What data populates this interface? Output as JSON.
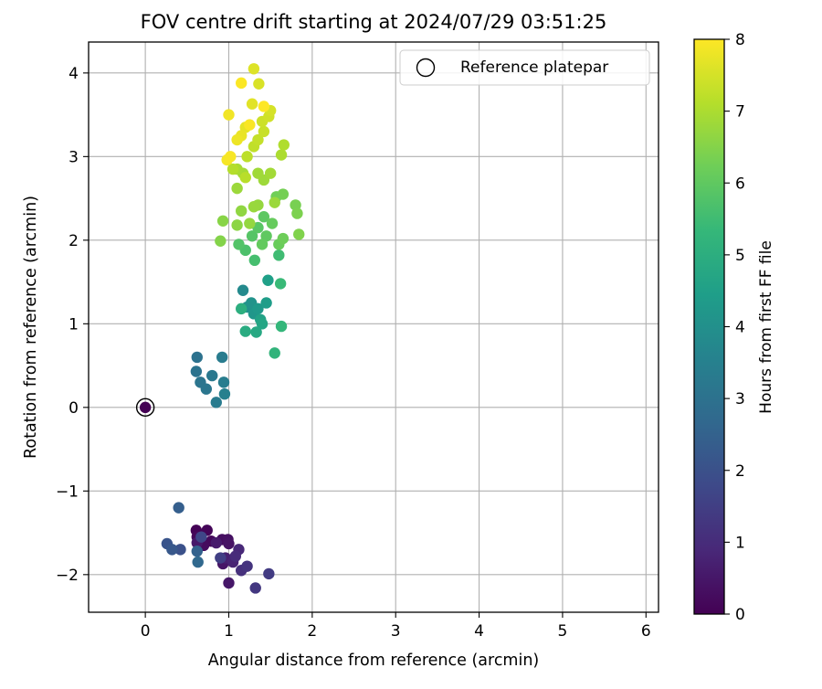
{
  "chart_data": {
    "type": "scatter",
    "title": "FOV centre drift starting at 2024/07/29 03:51:25",
    "xlabel": "Angular distance from reference (arcmin)",
    "ylabel": "Rotation from reference (arcmin)",
    "xlim": [
      -0.68,
      6.15
    ],
    "ylim": [
      -2.45,
      4.37
    ],
    "xticks": [
      0,
      1,
      2,
      3,
      4,
      5,
      6
    ],
    "yticks": [
      -2,
      -1,
      0,
      1,
      2,
      3,
      4
    ],
    "xtick_labels": [
      "0",
      "1",
      "2",
      "3",
      "4",
      "5",
      "6"
    ],
    "ytick_labels": [
      "−2",
      "−1",
      "0",
      "1",
      "2",
      "3",
      "4"
    ],
    "grid": true,
    "legend": {
      "placement": "top-right",
      "entries": [
        {
          "label": "Reference platepar",
          "marker": "open-circle"
        }
      ]
    },
    "reference_point": {
      "x": 0,
      "y": 0,
      "c": 0
    },
    "colorbar": {
      "label": "Hours from first FF file",
      "range": [
        0,
        8
      ],
      "ticks": [
        0,
        1,
        2,
        3,
        4,
        5,
        6,
        7,
        8
      ],
      "tick_labels": [
        "0",
        "1",
        "2",
        "3",
        "4",
        "5",
        "6",
        "7",
        "8"
      ],
      "colormap": "viridis",
      "stops": [
        "#440154",
        "#482878",
        "#3e4989",
        "#31688e",
        "#26828e",
        "#1f9e89",
        "#35b779",
        "#6ece58",
        "#b5de2b",
        "#fde725"
      ]
    },
    "points": [
      {
        "x": 0.61,
        "y": -1.47,
        "c": 0.05
      },
      {
        "x": 0.74,
        "y": -1.47,
        "c": 0.1
      },
      {
        "x": 0.62,
        "y": -1.55,
        "c": 0.15
      },
      {
        "x": 0.79,
        "y": -1.6,
        "c": 0.2
      },
      {
        "x": 0.7,
        "y": -1.65,
        "c": 0.25
      },
      {
        "x": 0.92,
        "y": -1.58,
        "c": 0.3
      },
      {
        "x": 0.99,
        "y": -1.58,
        "c": 0.35
      },
      {
        "x": 1.0,
        "y": -1.63,
        "c": 0.4
      },
      {
        "x": 0.93,
        "y": -1.87,
        "c": 0.45
      },
      {
        "x": 1.0,
        "y": -2.1,
        "c": 0.5
      },
      {
        "x": 0.62,
        "y": -1.62,
        "c": 0.55
      },
      {
        "x": 0.85,
        "y": -1.62,
        "c": 0.6
      },
      {
        "x": 0.96,
        "y": -1.8,
        "c": 0.7
      },
      {
        "x": 1.05,
        "y": -1.85,
        "c": 0.8
      },
      {
        "x": 1.12,
        "y": -1.7,
        "c": 0.9
      },
      {
        "x": 1.08,
        "y": -1.78,
        "c": 1.0
      },
      {
        "x": 1.15,
        "y": -1.95,
        "c": 1.1
      },
      {
        "x": 1.22,
        "y": -1.9,
        "c": 1.2
      },
      {
        "x": 1.32,
        "y": -2.16,
        "c": 1.3
      },
      {
        "x": 1.48,
        "y": -1.99,
        "c": 1.4
      },
      {
        "x": 0.9,
        "y": -1.8,
        "c": 1.5
      },
      {
        "x": 0.67,
        "y": -1.55,
        "c": 1.7
      },
      {
        "x": 0.42,
        "y": -1.7,
        "c": 2.0
      },
      {
        "x": 0.26,
        "y": -1.63,
        "c": 2.1
      },
      {
        "x": 0.32,
        "y": -1.7,
        "c": 2.2
      },
      {
        "x": 0.4,
        "y": -1.2,
        "c": 2.4
      },
      {
        "x": 0.62,
        "y": -1.72,
        "c": 2.5
      },
      {
        "x": 0.63,
        "y": -1.85,
        "c": 2.7
      },
      {
        "x": 0.62,
        "y": 0.6,
        "c": 3.0
      },
      {
        "x": 0.61,
        "y": 0.43,
        "c": 3.05
      },
      {
        "x": 0.66,
        "y": 0.3,
        "c": 3.1
      },
      {
        "x": 0.73,
        "y": 0.22,
        "c": 3.15
      },
      {
        "x": 0.8,
        "y": 0.38,
        "c": 3.2
      },
      {
        "x": 0.85,
        "y": 0.06,
        "c": 3.3
      },
      {
        "x": 0.92,
        "y": 0.6,
        "c": 3.35
      },
      {
        "x": 0.94,
        "y": 0.3,
        "c": 3.4
      },
      {
        "x": 0.95,
        "y": 0.16,
        "c": 3.5
      },
      {
        "x": 1.17,
        "y": 1.4,
        "c": 3.8
      },
      {
        "x": 1.22,
        "y": 1.2,
        "c": 4.0
      },
      {
        "x": 1.27,
        "y": 1.25,
        "c": 4.1
      },
      {
        "x": 1.3,
        "y": 1.12,
        "c": 4.2
      },
      {
        "x": 1.35,
        "y": 1.18,
        "c": 4.3
      },
      {
        "x": 1.45,
        "y": 1.25,
        "c": 4.4
      },
      {
        "x": 1.47,
        "y": 1.52,
        "c": 4.5
      },
      {
        "x": 1.38,
        "y": 1.05,
        "c": 4.6
      },
      {
        "x": 1.4,
        "y": 1.0,
        "c": 4.7
      },
      {
        "x": 1.33,
        "y": 0.9,
        "c": 4.8
      },
      {
        "x": 1.2,
        "y": 0.91,
        "c": 4.9
      },
      {
        "x": 1.15,
        "y": 1.18,
        "c": 5.0
      },
      {
        "x": 1.55,
        "y": 0.65,
        "c": 5.2
      },
      {
        "x": 1.63,
        "y": 0.97,
        "c": 5.3
      },
      {
        "x": 1.62,
        "y": 1.48,
        "c": 5.4
      },
      {
        "x": 1.6,
        "y": 1.82,
        "c": 5.5
      },
      {
        "x": 1.31,
        "y": 1.76,
        "c": 5.6
      },
      {
        "x": 1.2,
        "y": 1.88,
        "c": 5.7
      },
      {
        "x": 1.12,
        "y": 1.95,
        "c": 5.8
      },
      {
        "x": 1.28,
        "y": 2.05,
        "c": 5.85
      },
      {
        "x": 1.35,
        "y": 2.15,
        "c": 5.9
      },
      {
        "x": 1.42,
        "y": 2.28,
        "c": 5.95
      },
      {
        "x": 1.45,
        "y": 2.05,
        "c": 6.0
      },
      {
        "x": 1.4,
        "y": 1.95,
        "c": 6.05
      },
      {
        "x": 1.52,
        "y": 2.2,
        "c": 6.1
      },
      {
        "x": 1.6,
        "y": 1.95,
        "c": 6.15
      },
      {
        "x": 1.65,
        "y": 2.02,
        "c": 6.2
      },
      {
        "x": 1.57,
        "y": 2.52,
        "c": 6.25
      },
      {
        "x": 1.65,
        "y": 2.55,
        "c": 6.3
      },
      {
        "x": 1.8,
        "y": 2.42,
        "c": 6.35
      },
      {
        "x": 1.82,
        "y": 2.32,
        "c": 6.4
      },
      {
        "x": 1.84,
        "y": 2.07,
        "c": 6.45
      },
      {
        "x": 0.9,
        "y": 1.99,
        "c": 6.5
      },
      {
        "x": 0.93,
        "y": 2.23,
        "c": 6.55
      },
      {
        "x": 1.1,
        "y": 2.18,
        "c": 6.6
      },
      {
        "x": 1.15,
        "y": 2.35,
        "c": 6.65
      },
      {
        "x": 1.25,
        "y": 2.2,
        "c": 6.7
      },
      {
        "x": 1.35,
        "y": 2.42,
        "c": 6.72
      },
      {
        "x": 1.3,
        "y": 2.4,
        "c": 6.75
      },
      {
        "x": 1.55,
        "y": 2.45,
        "c": 6.78
      },
      {
        "x": 1.1,
        "y": 2.62,
        "c": 6.8
      },
      {
        "x": 1.42,
        "y": 2.72,
        "c": 6.82
      },
      {
        "x": 1.35,
        "y": 2.8,
        "c": 6.85
      },
      {
        "x": 1.5,
        "y": 2.8,
        "c": 6.88
      },
      {
        "x": 1.17,
        "y": 2.8,
        "c": 6.9
      },
      {
        "x": 1.1,
        "y": 2.85,
        "c": 6.95
      },
      {
        "x": 1.63,
        "y": 3.02,
        "c": 7.0
      },
      {
        "x": 1.66,
        "y": 3.14,
        "c": 7.05
      },
      {
        "x": 1.05,
        "y": 2.85,
        "c": 7.1
      },
      {
        "x": 1.2,
        "y": 2.75,
        "c": 7.15
      },
      {
        "x": 1.22,
        "y": 3.0,
        "c": 7.2
      },
      {
        "x": 1.3,
        "y": 3.12,
        "c": 7.25
      },
      {
        "x": 1.35,
        "y": 3.2,
        "c": 7.3
      },
      {
        "x": 1.42,
        "y": 3.3,
        "c": 7.35
      },
      {
        "x": 1.4,
        "y": 3.42,
        "c": 7.4
      },
      {
        "x": 1.48,
        "y": 3.48,
        "c": 7.45
      },
      {
        "x": 1.5,
        "y": 3.55,
        "c": 7.5
      },
      {
        "x": 1.36,
        "y": 3.87,
        "c": 7.55
      },
      {
        "x": 1.3,
        "y": 4.05,
        "c": 7.6
      },
      {
        "x": 1.28,
        "y": 3.63,
        "c": 7.65
      },
      {
        "x": 1.2,
        "y": 3.35,
        "c": 7.7
      },
      {
        "x": 1.15,
        "y": 3.25,
        "c": 7.75
      },
      {
        "x": 1.1,
        "y": 3.2,
        "c": 7.8
      },
      {
        "x": 1.0,
        "y": 3.5,
        "c": 7.85
      },
      {
        "x": 0.98,
        "y": 2.96,
        "c": 7.9
      },
      {
        "x": 1.02,
        "y": 3.0,
        "c": 7.92
      },
      {
        "x": 1.25,
        "y": 3.38,
        "c": 7.95
      },
      {
        "x": 1.15,
        "y": 3.88,
        "c": 7.97
      },
      {
        "x": 1.42,
        "y": 3.6,
        "c": 8.0
      }
    ]
  }
}
